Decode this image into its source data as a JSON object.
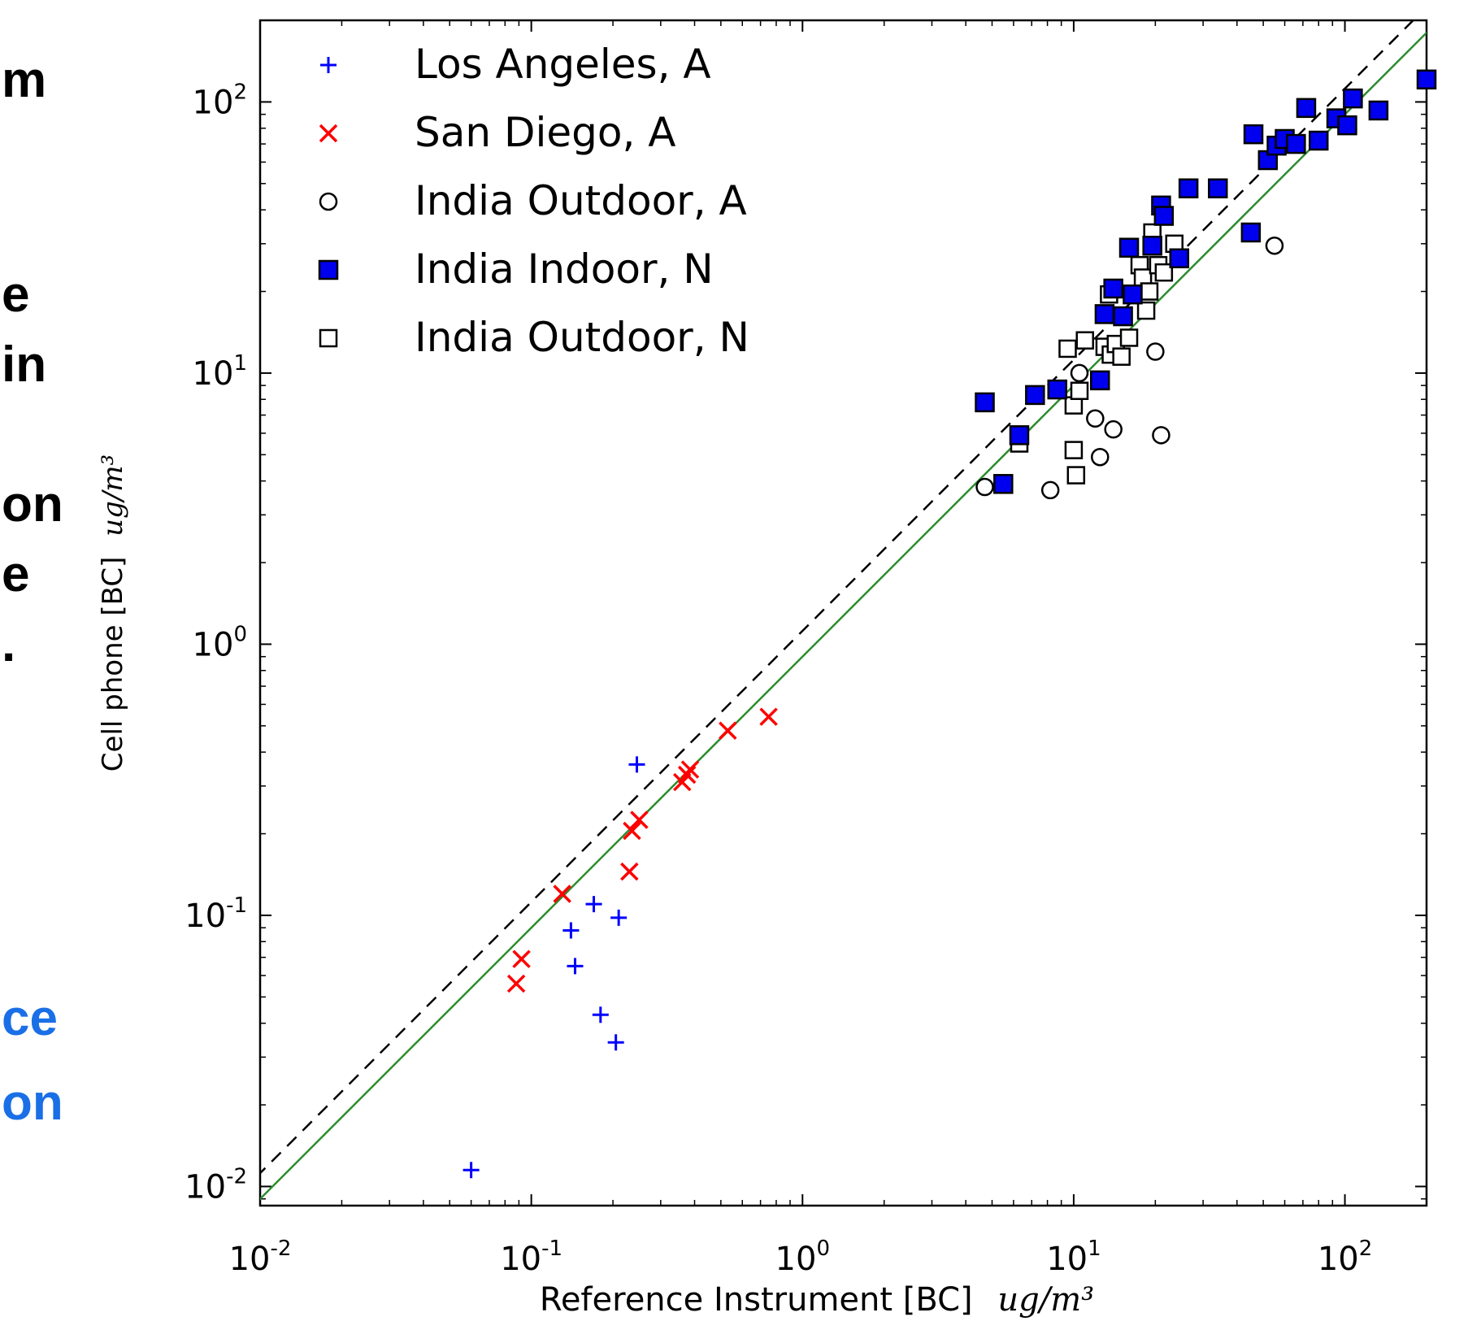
{
  "side_text": {
    "fragments": [
      {
        "text": "m",
        "style": "dark"
      },
      {
        "text": "e",
        "style": "dark"
      },
      {
        "text": "in",
        "style": "dark"
      },
      {
        "text": "on",
        "style": "dark"
      },
      {
        "text": "e",
        "style": "dark"
      },
      {
        "text": ".",
        "style": "dark"
      },
      {
        "text": "ce",
        "style": "blue"
      },
      {
        "text": "on",
        "style": "blue"
      }
    ]
  },
  "chart_data": {
    "type": "scatter",
    "title": "",
    "xlabel": "Reference Instrument [BC]",
    "xlabel_unit": "ug/m³",
    "ylabel": "Cell phone [BC]",
    "ylabel_unit": "ug/m³",
    "xscale": "log",
    "yscale": "log",
    "xlim": [
      0.01,
      200
    ],
    "ylim": [
      0.0085,
      200
    ],
    "x_ticks": [
      {
        "base": "10",
        "exp": "-2"
      },
      {
        "base": "10",
        "exp": "-1"
      },
      {
        "base": "10",
        "exp": "0"
      },
      {
        "base": "10",
        "exp": "1"
      },
      {
        "base": "10",
        "exp": "2"
      }
    ],
    "y_ticks": [
      {
        "base": "10",
        "exp": "-2"
      },
      {
        "base": "10",
        "exp": "-1"
      },
      {
        "base": "10",
        "exp": "0"
      },
      {
        "base": "10",
        "exp": "1"
      },
      {
        "base": "10",
        "exp": "2"
      }
    ],
    "grid": false,
    "legend_position": "top-left",
    "reference_lines": [
      {
        "style": "dashed",
        "color": "#000000",
        "slope": 1.0,
        "factor": 1.12
      },
      {
        "style": "solid",
        "color": "#2e8b2e",
        "slope": 1.0,
        "factor": 0.9
      }
    ],
    "series": [
      {
        "name": "Los Angeles, A",
        "marker": "plus",
        "color": "#0000ff",
        "points": [
          [
            0.06,
            0.0115
          ],
          [
            0.14,
            0.088
          ],
          [
            0.145,
            0.065
          ],
          [
            0.17,
            0.11
          ],
          [
            0.18,
            0.043
          ],
          [
            0.205,
            0.034
          ],
          [
            0.21,
            0.098
          ],
          [
            0.245,
            0.36
          ]
        ]
      },
      {
        "name": "San Diego, A",
        "marker": "x",
        "color": "#ff0000",
        "points": [
          [
            0.088,
            0.056
          ],
          [
            0.092,
            0.069
          ],
          [
            0.13,
            0.12
          ],
          [
            0.23,
            0.145
          ],
          [
            0.235,
            0.205
          ],
          [
            0.25,
            0.225
          ],
          [
            0.36,
            0.31
          ],
          [
            0.375,
            0.33
          ],
          [
            0.385,
            0.345
          ],
          [
            0.53,
            0.48
          ],
          [
            0.75,
            0.54
          ]
        ]
      },
      {
        "name": "India Outdoor, A",
        "marker": "circle-open",
        "color": "#000000",
        "points": [
          [
            4.7,
            3.8
          ],
          [
            8.2,
            3.7
          ],
          [
            10.5,
            10.0
          ],
          [
            12.0,
            6.8
          ],
          [
            12.5,
            4.9
          ],
          [
            14.0,
            6.2
          ],
          [
            20.0,
            12.0
          ],
          [
            21.0,
            5.9
          ],
          [
            55.0,
            29.5
          ]
        ]
      },
      {
        "name": "India Indoor, N",
        "marker": "square-filled",
        "color": "#0000ee",
        "points": [
          [
            4.7,
            7.8
          ],
          [
            5.5,
            3.9
          ],
          [
            6.3,
            5.9
          ],
          [
            7.2,
            8.3
          ],
          [
            8.7,
            8.7
          ],
          [
            12.5,
            9.4
          ],
          [
            13.0,
            16.5
          ],
          [
            14.0,
            20.5
          ],
          [
            15.2,
            16.2
          ],
          [
            16.0,
            29.0
          ],
          [
            16.5,
            19.5
          ],
          [
            19.5,
            29.5
          ],
          [
            21.0,
            41.5
          ],
          [
            21.5,
            38.0
          ],
          [
            24.5,
            26.5
          ],
          [
            26.5,
            48.0
          ],
          [
            34.0,
            48.0
          ],
          [
            45.0,
            33.0
          ],
          [
            46.0,
            76.0
          ],
          [
            52.0,
            61.0
          ],
          [
            56.0,
            69.0
          ],
          [
            60.0,
            73.0
          ],
          [
            66.0,
            70.0
          ],
          [
            72.0,
            95.0
          ],
          [
            80.0,
            72.0
          ],
          [
            93.0,
            87.0
          ],
          [
            102.0,
            82.0
          ],
          [
            107.0,
            103.0
          ],
          [
            133.0,
            93.0
          ],
          [
            200.0,
            121.0
          ]
        ]
      },
      {
        "name": "India Outdoor, N",
        "marker": "square-open",
        "color": "#000000",
        "points": [
          [
            6.3,
            5.5
          ],
          [
            9.5,
            12.3
          ],
          [
            10.0,
            7.6
          ],
          [
            10.0,
            5.2
          ],
          [
            10.2,
            4.2
          ],
          [
            10.5,
            8.6
          ],
          [
            11.0,
            13.2
          ],
          [
            13.5,
            19.5
          ],
          [
            13.0,
            12.5
          ],
          [
            13.7,
            11.7
          ],
          [
            14.3,
            12.8
          ],
          [
            15.0,
            11.5
          ],
          [
            16.0,
            13.5
          ],
          [
            17.5,
            25.0
          ],
          [
            18.0,
            22.5
          ],
          [
            18.5,
            17.0
          ],
          [
            19.0,
            20.0
          ],
          [
            19.5,
            33.0
          ],
          [
            20.5,
            25.0
          ],
          [
            21.5,
            23.5
          ],
          [
            23.5,
            30.0
          ]
        ]
      }
    ]
  }
}
